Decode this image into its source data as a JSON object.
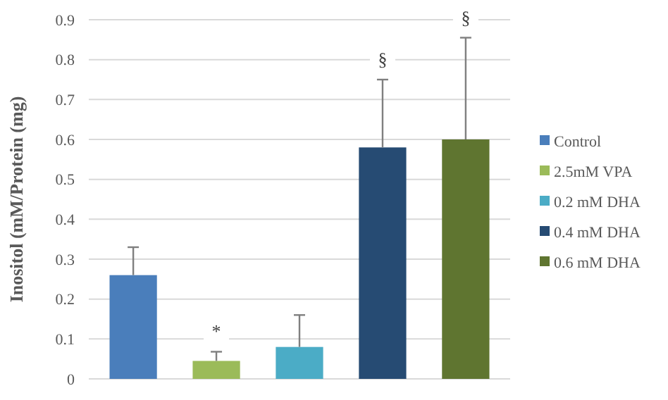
{
  "chart_data": {
    "type": "bar",
    "ylabel": "Inositol (mM/Protein (mg)",
    "categories": [
      null
    ],
    "series": [
      {
        "name": "Control",
        "color": "#4a7ebb",
        "values": [
          0.26
        ],
        "errors": [
          [
            0.26,
            0.33
          ]
        ]
      },
      {
        "name": "2.5mM VPA",
        "color": "#9bbb59",
        "values": [
          0.045
        ],
        "errors": [
          [
            0.045,
            0.068
          ]
        ]
      },
      {
        "name": "0.2 mM DHA",
        "color": "#4bacc6",
        "values": [
          0.08
        ],
        "errors": [
          [
            0.08,
            0.16
          ]
        ]
      },
      {
        "name": "0.4 mM DHA",
        "color": "#264b73",
        "values": [
          0.58
        ],
        "errors": [
          [
            0.58,
            0.75
          ]
        ]
      },
      {
        "name": "0.6 mM DHA",
        "color": "#5f7530",
        "values": [
          0.6
        ],
        "errors": [
          [
            0.6,
            0.855
          ]
        ]
      }
    ],
    "annotations": [
      "*",
      "§",
      "§"
    ],
    "ylim": [
      0,
      0.9
    ],
    "yticks": [
      0,
      0.1,
      0.2,
      0.3,
      0.4,
      0.5,
      0.6,
      0.7,
      0.8,
      0.9
    ],
    "grid": "y",
    "legend": "right"
  }
}
